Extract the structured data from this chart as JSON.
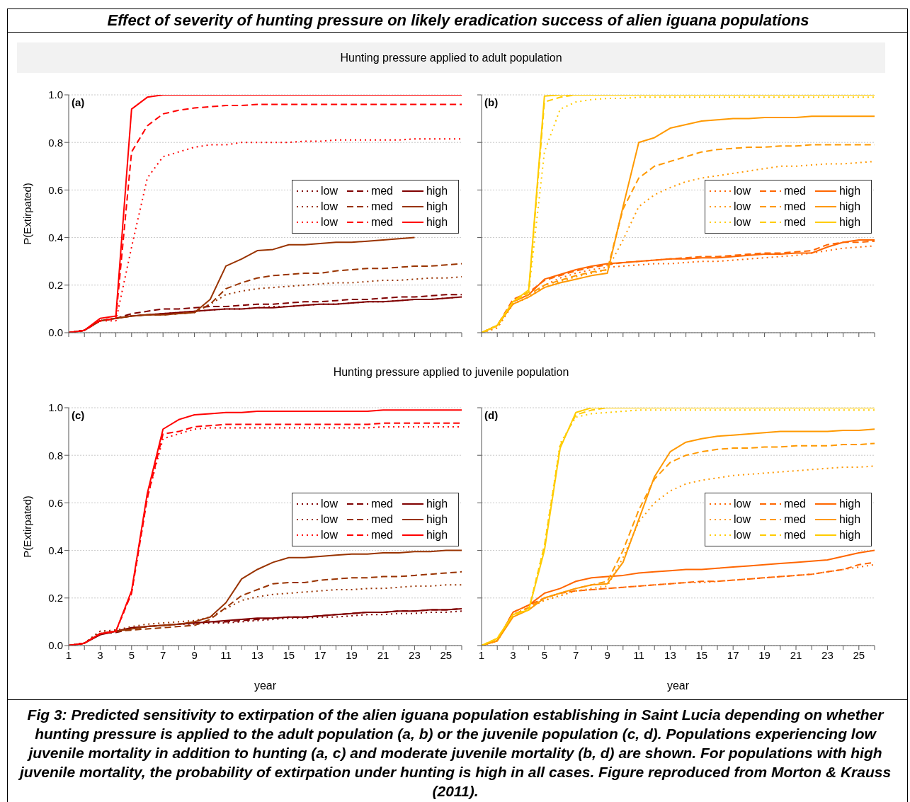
{
  "chart_data": [
    {
      "type": "line",
      "title": "Effect of severity of hunting pressure on likely eradication success of alien iguana populations",
      "subtitle": "Hunting pressure applied to adult population",
      "ylabel": "P(Extirpated)",
      "annotations": [
        "(a)"
      ],
      "x": [
        1,
        2,
        3,
        4,
        5,
        6,
        7,
        8,
        9,
        10,
        11,
        12,
        13,
        14,
        15,
        16,
        17,
        18,
        19,
        20,
        21,
        22,
        23,
        24,
        25,
        26
      ],
      "xlim": [
        1,
        26
      ],
      "xticks": [
        1,
        2,
        3,
        4,
        5,
        6,
        7,
        8,
        9,
        10,
        11,
        12,
        13,
        14,
        15,
        16,
        17,
        18,
        19,
        20,
        21,
        22,
        23,
        24,
        25,
        26
      ],
      "ylim": [
        0,
        1
      ],
      "yticks": [
        {
          "value": 0,
          "label": "0.0"
        },
        {
          "value": 0.2,
          "label": "0.2"
        },
        {
          "value": 0.4,
          "label": "0.4"
        },
        {
          "value": 0.6,
          "label": "0.6"
        },
        {
          "value": 0.8,
          "label": "0.8"
        },
        {
          "value": 1,
          "label": "1.0"
        }
      ],
      "tick_labels": "y",
      "grid": "y",
      "legend": "right",
      "marker": "none",
      "series": [
        {
          "name": "low",
          "color": "#800000",
          "line_style": "dotted",
          "values": [
            0,
            0.01,
            0.05,
            0.06,
            0.07,
            0.075,
            0.08,
            0.085,
            0.09,
            0.095,
            0.1,
            0.1,
            0.105,
            0.11,
            0.11,
            0.115,
            0.12,
            0.12,
            0.125,
            0.13,
            0.13,
            0.135,
            0.14,
            0.14,
            0.145,
            0.15
          ]
        },
        {
          "name": "med",
          "color": "#800000",
          "line_style": "dashed",
          "values": [
            0,
            0.01,
            0.05,
            0.06,
            0.08,
            0.09,
            0.1,
            0.1,
            0.105,
            0.11,
            0.11,
            0.115,
            0.12,
            0.12,
            0.125,
            0.13,
            0.13,
            0.135,
            0.14,
            0.14,
            0.145,
            0.15,
            0.15,
            0.155,
            0.16,
            0.16
          ]
        },
        {
          "name": "high",
          "color": "#800000",
          "line_style": "solid",
          "values": [
            0,
            0.01,
            0.05,
            0.06,
            0.07,
            0.075,
            0.08,
            0.085,
            0.09,
            0.095,
            0.1,
            0.1,
            0.105,
            0.105,
            0.11,
            0.115,
            0.12,
            0.12,
            0.125,
            0.13,
            0.13,
            0.135,
            0.14,
            0.14,
            0.145,
            0.15
          ]
        },
        {
          "name": "low",
          "color": "#993300",
          "line_style": "dotted",
          "values": [
            0,
            0.01,
            0.05,
            0.06,
            0.07,
            0.075,
            0.075,
            0.08,
            0.085,
            0.12,
            0.16,
            0.175,
            0.185,
            0.19,
            0.195,
            0.2,
            0.205,
            0.21,
            0.21,
            0.215,
            0.22,
            0.22,
            0.225,
            0.23,
            0.23,
            0.235
          ]
        },
        {
          "name": "med",
          "color": "#993300",
          "line_style": "dashed",
          "values": [
            0,
            0.01,
            0.05,
            0.06,
            0.07,
            0.075,
            0.075,
            0.08,
            0.085,
            0.12,
            0.185,
            0.21,
            0.23,
            0.24,
            0.245,
            0.25,
            0.25,
            0.26,
            0.265,
            0.27,
            0.27,
            0.275,
            0.28,
            0.28,
            0.285,
            0.29
          ]
        },
        {
          "name": "high",
          "color": "#993300",
          "line_style": "solid",
          "values": [
            0,
            0.01,
            0.05,
            0.06,
            0.07,
            0.075,
            0.075,
            0.08,
            0.085,
            0.14,
            0.28,
            0.31,
            0.345,
            0.35,
            0.37,
            0.37,
            0.375,
            0.38,
            0.38,
            0.385,
            0.39,
            0.395,
            0.4,
            null,
            null,
            null
          ]
        },
        {
          "name": "low",
          "color": "#ff0000",
          "line_style": "dotted",
          "values": [
            0,
            0.01,
            0.05,
            0.05,
            0.36,
            0.65,
            0.74,
            0.76,
            0.78,
            0.79,
            0.79,
            0.8,
            0.8,
            0.8,
            0.8,
            0.805,
            0.805,
            0.81,
            0.81,
            0.81,
            0.81,
            0.81,
            0.815,
            0.815,
            0.815,
            0.815
          ]
        },
        {
          "name": "med",
          "color": "#ff0000",
          "line_style": "dashed",
          "values": [
            0,
            0.01,
            0.05,
            0.06,
            0.76,
            0.87,
            0.92,
            0.935,
            0.945,
            0.95,
            0.955,
            0.955,
            0.96,
            0.96,
            0.96,
            0.96,
            0.96,
            0.96,
            0.96,
            0.96,
            0.96,
            0.96,
            0.96,
            0.96,
            0.96,
            0.96
          ]
        },
        {
          "name": "high",
          "color": "#ff0000",
          "line_style": "solid",
          "values": [
            0,
            0.01,
            0.06,
            0.07,
            0.94,
            0.99,
            1,
            1,
            1,
            1,
            1,
            1,
            1,
            1,
            1,
            1,
            1,
            1,
            1,
            1,
            1,
            1,
            1,
            1,
            1,
            1
          ]
        }
      ]
    },
    {
      "type": "line",
      "annotations": [
        "(b)"
      ],
      "x": [
        1,
        2,
        3,
        4,
        5,
        6,
        7,
        8,
        9,
        10,
        11,
        12,
        13,
        14,
        15,
        16,
        17,
        18,
        19,
        20,
        21,
        22,
        23,
        24,
        25,
        26
      ],
      "xlim": [
        1,
        26
      ],
      "xticks": [
        1,
        2,
        3,
        4,
        5,
        6,
        7,
        8,
        9,
        10,
        11,
        12,
        13,
        14,
        15,
        16,
        17,
        18,
        19,
        20,
        21,
        22,
        23,
        24,
        25,
        26
      ],
      "ylim": [
        0,
        1
      ],
      "yticks": [
        0,
        0.2,
        0.4,
        0.6,
        0.8,
        1
      ],
      "tick_labels": false,
      "grid": "y",
      "legend": "right",
      "marker": "none",
      "series": [
        {
          "name": "low",
          "color": "#ff6600",
          "line_style": "dotted",
          "values": [
            0,
            0.02,
            0.12,
            0.15,
            0.2,
            0.23,
            0.25,
            0.265,
            0.275,
            0.28,
            0.285,
            0.29,
            0.29,
            0.295,
            0.3,
            0.3,
            0.305,
            0.31,
            0.315,
            0.32,
            0.325,
            0.335,
            0.345,
            0.355,
            0.36,
            0.365
          ]
        },
        {
          "name": "med",
          "color": "#ff6600",
          "line_style": "dashed",
          "values": [
            0,
            0.03,
            0.14,
            0.17,
            0.22,
            0.24,
            0.26,
            0.275,
            0.285,
            0.295,
            0.3,
            0.305,
            0.31,
            0.315,
            0.32,
            0.32,
            0.325,
            0.33,
            0.335,
            0.335,
            0.34,
            0.345,
            0.37,
            0.38,
            0.38,
            0.385
          ]
        },
        {
          "name": "high",
          "color": "#ff6600",
          "line_style": "solid",
          "values": [
            0,
            0.03,
            0.13,
            0.16,
            0.225,
            0.245,
            0.265,
            0.28,
            0.29,
            0.295,
            0.3,
            0.305,
            0.31,
            0.31,
            0.315,
            0.315,
            0.32,
            0.325,
            0.33,
            0.33,
            0.335,
            0.335,
            0.36,
            0.38,
            0.39,
            0.39
          ]
        },
        {
          "name": "low",
          "color": "#ff9900",
          "line_style": "dotted",
          "values": [
            0,
            0.02,
            0.12,
            0.15,
            0.19,
            0.215,
            0.235,
            0.25,
            0.265,
            0.39,
            0.53,
            0.58,
            0.61,
            0.635,
            0.65,
            0.66,
            0.67,
            0.68,
            0.69,
            0.7,
            0.7,
            0.705,
            0.71,
            0.71,
            0.715,
            0.72
          ]
        },
        {
          "name": "med",
          "color": "#ff9900",
          "line_style": "dashed",
          "values": [
            0,
            0.03,
            0.13,
            0.16,
            0.2,
            0.22,
            0.24,
            0.255,
            0.265,
            0.52,
            0.65,
            0.7,
            0.72,
            0.74,
            0.76,
            0.77,
            0.775,
            0.78,
            0.78,
            0.785,
            0.785,
            0.79,
            0.79,
            0.79,
            0.79,
            0.79
          ]
        },
        {
          "name": "high",
          "color": "#ff9900",
          "line_style": "solid",
          "values": [
            0,
            0.03,
            0.12,
            0.15,
            0.19,
            0.21,
            0.225,
            0.24,
            0.25,
            0.53,
            0.8,
            0.82,
            0.86,
            0.875,
            0.89,
            0.895,
            0.9,
            0.9,
            0.905,
            0.905,
            0.905,
            0.91,
            0.91,
            0.91,
            0.91,
            0.91
          ]
        },
        {
          "name": "low",
          "color": "#ffcc00",
          "line_style": "dotted",
          "values": [
            0,
            0.03,
            0.13,
            0.17,
            0.76,
            0.94,
            0.97,
            0.98,
            0.985,
            0.985,
            0.99,
            0.99,
            0.99,
            0.99,
            0.99,
            0.99,
            0.99,
            0.99,
            0.99,
            0.99,
            0.99,
            0.99,
            0.99,
            0.99,
            0.99,
            0.99
          ]
        },
        {
          "name": "med",
          "color": "#ffcc00",
          "line_style": "dashed",
          "values": [
            0,
            0.03,
            0.13,
            0.17,
            0.97,
            0.99,
            1,
            1,
            1,
            1,
            1,
            1,
            1,
            1,
            1,
            1,
            1,
            1,
            1,
            1,
            1,
            1,
            1,
            1,
            1,
            1
          ]
        },
        {
          "name": "high",
          "color": "#ffcc00",
          "line_style": "solid",
          "values": [
            0,
            0.03,
            0.13,
            0.18,
            0.995,
            1,
            1,
            1,
            1,
            1,
            1,
            1,
            1,
            1,
            1,
            1,
            1,
            1,
            1,
            1,
            1,
            1,
            1,
            1,
            1,
            1
          ]
        }
      ]
    },
    {
      "type": "line",
      "subtitle": "Hunting pressure applied to juvenile population",
      "xlabel": "year",
      "ylabel": "P(Extirpated)",
      "annotations": [
        "(c)"
      ],
      "x": [
        1,
        2,
        3,
        4,
        5,
        6,
        7,
        8,
        9,
        10,
        11,
        12,
        13,
        14,
        15,
        16,
        17,
        18,
        19,
        20,
        21,
        22,
        23,
        24,
        25,
        26
      ],
      "xlim": [
        1,
        26
      ],
      "xticks": [
        1,
        {
          "value": 2,
          "label": null
        },
        3,
        {
          "value": 4,
          "label": null
        },
        5,
        {
          "value": 6,
          "label": null
        },
        7,
        {
          "value": 8,
          "label": null
        },
        9,
        {
          "value": 10,
          "label": null
        },
        11,
        {
          "value": 12,
          "label": null
        },
        13,
        {
          "value": 14,
          "label": null
        },
        15,
        {
          "value": 16,
          "label": null
        },
        17,
        {
          "value": 18,
          "label": null
        },
        19,
        {
          "value": 20,
          "label": null
        },
        21,
        {
          "value": 22,
          "label": null
        },
        23,
        {
          "value": 24,
          "label": null
        },
        25,
        {
          "value": 26,
          "label": null
        }
      ],
      "ylim": [
        0,
        1
      ],
      "yticks": [
        {
          "value": 0,
          "label": "0.0"
        },
        {
          "value": 0.2,
          "label": "0.2"
        },
        {
          "value": 0.4,
          "label": "0.4"
        },
        {
          "value": 0.6,
          "label": "0.6"
        },
        {
          "value": 0.8,
          "label": "0.8"
        },
        {
          "value": 1,
          "label": "1.0"
        }
      ],
      "grid": "y",
      "legend": "right",
      "marker": "none",
      "series": [
        {
          "name": "low",
          "color": "#800000",
          "line_style": "dotted",
          "values": [
            0,
            0.01,
            0.06,
            0.065,
            0.07,
            0.08,
            0.085,
            0.09,
            0.09,
            0.095,
            0.095,
            0.1,
            0.105,
            0.11,
            0.115,
            0.115,
            0.12,
            0.12,
            0.125,
            0.13,
            0.13,
            0.135,
            0.135,
            0.14,
            0.14,
            0.145
          ]
        },
        {
          "name": "med",
          "color": "#800000",
          "line_style": "dashed",
          "values": [
            0,
            0.01,
            0.05,
            0.055,
            0.07,
            0.08,
            0.085,
            0.09,
            0.095,
            0.1,
            0.1,
            0.105,
            0.11,
            0.115,
            0.12,
            0.12,
            0.125,
            0.13,
            0.135,
            0.14,
            0.14,
            0.145,
            0.145,
            0.15,
            0.15,
            0.155
          ]
        },
        {
          "name": "high",
          "color": "#800000",
          "line_style": "solid",
          "values": [
            0,
            0.01,
            0.045,
            0.06,
            0.075,
            0.08,
            0.085,
            0.09,
            0.095,
            0.1,
            0.105,
            0.11,
            0.115,
            0.115,
            0.12,
            0.12,
            0.125,
            0.13,
            0.135,
            0.14,
            0.14,
            0.145,
            0.145,
            0.15,
            0.15,
            0.155
          ]
        },
        {
          "name": "low",
          "color": "#993300",
          "line_style": "dotted",
          "values": [
            0,
            0.01,
            0.06,
            0.065,
            0.08,
            0.09,
            0.095,
            0.1,
            0.105,
            0.12,
            0.155,
            0.19,
            0.205,
            0.215,
            0.22,
            0.225,
            0.23,
            0.235,
            0.235,
            0.24,
            0.24,
            0.245,
            0.25,
            0.25,
            0.255,
            0.255
          ]
        },
        {
          "name": "med",
          "color": "#993300",
          "line_style": "dashed",
          "values": [
            0,
            0.01,
            0.05,
            0.06,
            0.065,
            0.07,
            0.075,
            0.08,
            0.085,
            0.11,
            0.16,
            0.21,
            0.235,
            0.26,
            0.265,
            0.265,
            0.275,
            0.28,
            0.285,
            0.285,
            0.29,
            0.29,
            0.295,
            0.3,
            0.305,
            0.31
          ]
        },
        {
          "name": "high",
          "color": "#993300",
          "line_style": "solid",
          "values": [
            0,
            0.01,
            0.05,
            0.06,
            0.07,
            0.08,
            0.085,
            0.09,
            0.1,
            0.12,
            0.18,
            0.28,
            0.32,
            0.35,
            0.37,
            0.37,
            0.375,
            0.38,
            0.385,
            0.385,
            0.39,
            0.39,
            0.395,
            0.395,
            0.4,
            0.4
          ]
        },
        {
          "name": "low",
          "color": "#ff0000",
          "line_style": "dotted",
          "values": [
            0,
            0.01,
            0.05,
            0.06,
            0.22,
            0.62,
            0.87,
            0.89,
            0.91,
            0.915,
            0.915,
            0.915,
            0.915,
            0.915,
            0.915,
            0.915,
            0.915,
            0.915,
            0.915,
            0.915,
            0.92,
            0.92,
            0.92,
            0.92,
            0.92,
            0.92
          ]
        },
        {
          "name": "med",
          "color": "#ff0000",
          "line_style": "dashed",
          "values": [
            0,
            0.01,
            0.05,
            0.06,
            0.22,
            0.62,
            0.89,
            0.9,
            0.92,
            0.925,
            0.93,
            0.93,
            0.93,
            0.93,
            0.93,
            0.93,
            0.93,
            0.93,
            0.93,
            0.93,
            0.935,
            0.935,
            0.935,
            0.935,
            0.935,
            0.935
          ]
        },
        {
          "name": "high",
          "color": "#ff0000",
          "line_style": "solid",
          "values": [
            0,
            0.01,
            0.05,
            0.06,
            0.23,
            0.64,
            0.91,
            0.95,
            0.97,
            0.975,
            0.98,
            0.98,
            0.985,
            0.985,
            0.985,
            0.985,
            0.985,
            0.985,
            0.985,
            0.985,
            0.99,
            0.99,
            0.99,
            0.99,
            0.99,
            0.99
          ]
        }
      ]
    },
    {
      "type": "line",
      "xlabel": "year",
      "annotations": [
        "(d)",
        "Fig 3:  Predicted sensitivity to extirpation of the alien iguana population establishing in Saint Lucia depending on whether hunting pressure is applied to the adult population (a, b) or the juvenile population (c, d). Populations experiencing low juvenile mortality in addition to hunting (a, c) and moderate juvenile mortality (b, d) are shown. For populations with high juvenile mortality, the probability of extirpation under hunting is high in all cases. Figure reproduced from Morton & Krauss (2011)."
      ],
      "x": [
        1,
        2,
        3,
        4,
        5,
        6,
        7,
        8,
        9,
        10,
        11,
        12,
        13,
        14,
        15,
        16,
        17,
        18,
        19,
        20,
        21,
        22,
        23,
        24,
        25,
        26
      ],
      "xlim": [
        1,
        26
      ],
      "xticks": [
        1,
        {
          "value": 2,
          "label": null
        },
        3,
        {
          "value": 4,
          "label": null
        },
        5,
        {
          "value": 6,
          "label": null
        },
        7,
        {
          "value": 8,
          "label": null
        },
        9,
        {
          "value": 10,
          "label": null
        },
        11,
        {
          "value": 12,
          "label": null
        },
        13,
        {
          "value": 14,
          "label": null
        },
        15,
        {
          "value": 16,
          "label": null
        },
        17,
        {
          "value": 18,
          "label": null
        },
        19,
        {
          "value": 20,
          "label": null
        },
        21,
        {
          "value": 22,
          "label": null
        },
        23,
        {
          "value": 24,
          "label": null
        },
        25,
        {
          "value": 26,
          "label": null
        }
      ],
      "ylim": [
        0,
        1
      ],
      "yticks": [
        0,
        0.2,
        0.4,
        0.6,
        0.8,
        1
      ],
      "tick_labels": "x",
      "grid": "y",
      "legend": "right",
      "marker": "none",
      "series": [
        {
          "name": "low",
          "color": "#ff6600",
          "line_style": "dotted",
          "values": [
            0,
            0.02,
            0.13,
            0.16,
            0.19,
            0.21,
            0.23,
            0.235,
            0.24,
            0.245,
            0.25,
            0.255,
            0.26,
            0.265,
            0.265,
            0.27,
            0.275,
            0.28,
            0.285,
            0.29,
            0.295,
            0.3,
            0.31,
            0.32,
            0.33,
            0.34
          ]
        },
        {
          "name": "med",
          "color": "#ff6600",
          "line_style": "dashed",
          "values": [
            0,
            0.02,
            0.14,
            0.17,
            0.2,
            0.22,
            0.23,
            0.235,
            0.24,
            0.245,
            0.25,
            0.255,
            0.26,
            0.265,
            0.27,
            0.27,
            0.275,
            0.28,
            0.285,
            0.29,
            0.295,
            0.3,
            0.31,
            0.32,
            0.34,
            0.35
          ]
        },
        {
          "name": "high",
          "color": "#ff6600",
          "line_style": "solid",
          "values": [
            0,
            0.02,
            0.14,
            0.17,
            0.22,
            0.24,
            0.27,
            0.285,
            0.29,
            0.295,
            0.305,
            0.31,
            0.315,
            0.32,
            0.32,
            0.325,
            0.33,
            0.335,
            0.34,
            0.345,
            0.35,
            0.355,
            0.36,
            0.375,
            0.39,
            0.4
          ]
        },
        {
          "name": "low",
          "color": "#ff9900",
          "line_style": "dotted",
          "values": [
            0,
            0.02,
            0.13,
            0.16,
            0.19,
            0.21,
            0.23,
            0.24,
            0.25,
            0.37,
            0.52,
            0.6,
            0.65,
            0.68,
            0.695,
            0.705,
            0.715,
            0.72,
            0.725,
            0.73,
            0.735,
            0.74,
            0.745,
            0.75,
            0.75,
            0.755
          ]
        },
        {
          "name": "med",
          "color": "#ff9900",
          "line_style": "dashed",
          "values": [
            0,
            0.02,
            0.13,
            0.16,
            0.2,
            0.22,
            0.24,
            0.255,
            0.27,
            0.4,
            0.57,
            0.7,
            0.77,
            0.8,
            0.815,
            0.825,
            0.83,
            0.83,
            0.835,
            0.835,
            0.84,
            0.84,
            0.84,
            0.845,
            0.845,
            0.85
          ]
        },
        {
          "name": "high",
          "color": "#ff9900",
          "line_style": "solid",
          "values": [
            0,
            0.02,
            0.12,
            0.15,
            0.2,
            0.22,
            0.24,
            0.255,
            0.26,
            0.35,
            0.53,
            0.71,
            0.815,
            0.855,
            0.87,
            0.88,
            0.885,
            0.89,
            0.895,
            0.9,
            0.9,
            0.9,
            0.9,
            0.905,
            0.905,
            0.91
          ]
        },
        {
          "name": "low",
          "color": "#ffcc00",
          "line_style": "dotted",
          "values": [
            0,
            0.03,
            0.13,
            0.15,
            0.42,
            0.85,
            0.96,
            0.975,
            0.98,
            0.985,
            0.99,
            0.99,
            0.99,
            0.99,
            0.99,
            0.99,
            0.99,
            0.99,
            0.99,
            0.99,
            0.99,
            0.99,
            0.99,
            0.99,
            0.99,
            0.99
          ]
        },
        {
          "name": "med",
          "color": "#ffcc00",
          "line_style": "dashed",
          "values": [
            0,
            0.03,
            0.13,
            0.15,
            0.42,
            0.84,
            0.97,
            0.99,
            1,
            1,
            1,
            1,
            1,
            1,
            1,
            1,
            1,
            1,
            1,
            1,
            1,
            1,
            1,
            1,
            1,
            1
          ]
        },
        {
          "name": "high",
          "color": "#ffcc00",
          "line_style": "solid",
          "values": [
            0,
            0.03,
            0.13,
            0.15,
            0.4,
            0.83,
            0.98,
            1,
            1,
            1,
            1,
            1,
            1,
            1,
            1,
            1,
            1,
            1,
            1,
            1,
            1,
            1,
            1,
            1,
            1,
            1
          ]
        }
      ]
    }
  ]
}
